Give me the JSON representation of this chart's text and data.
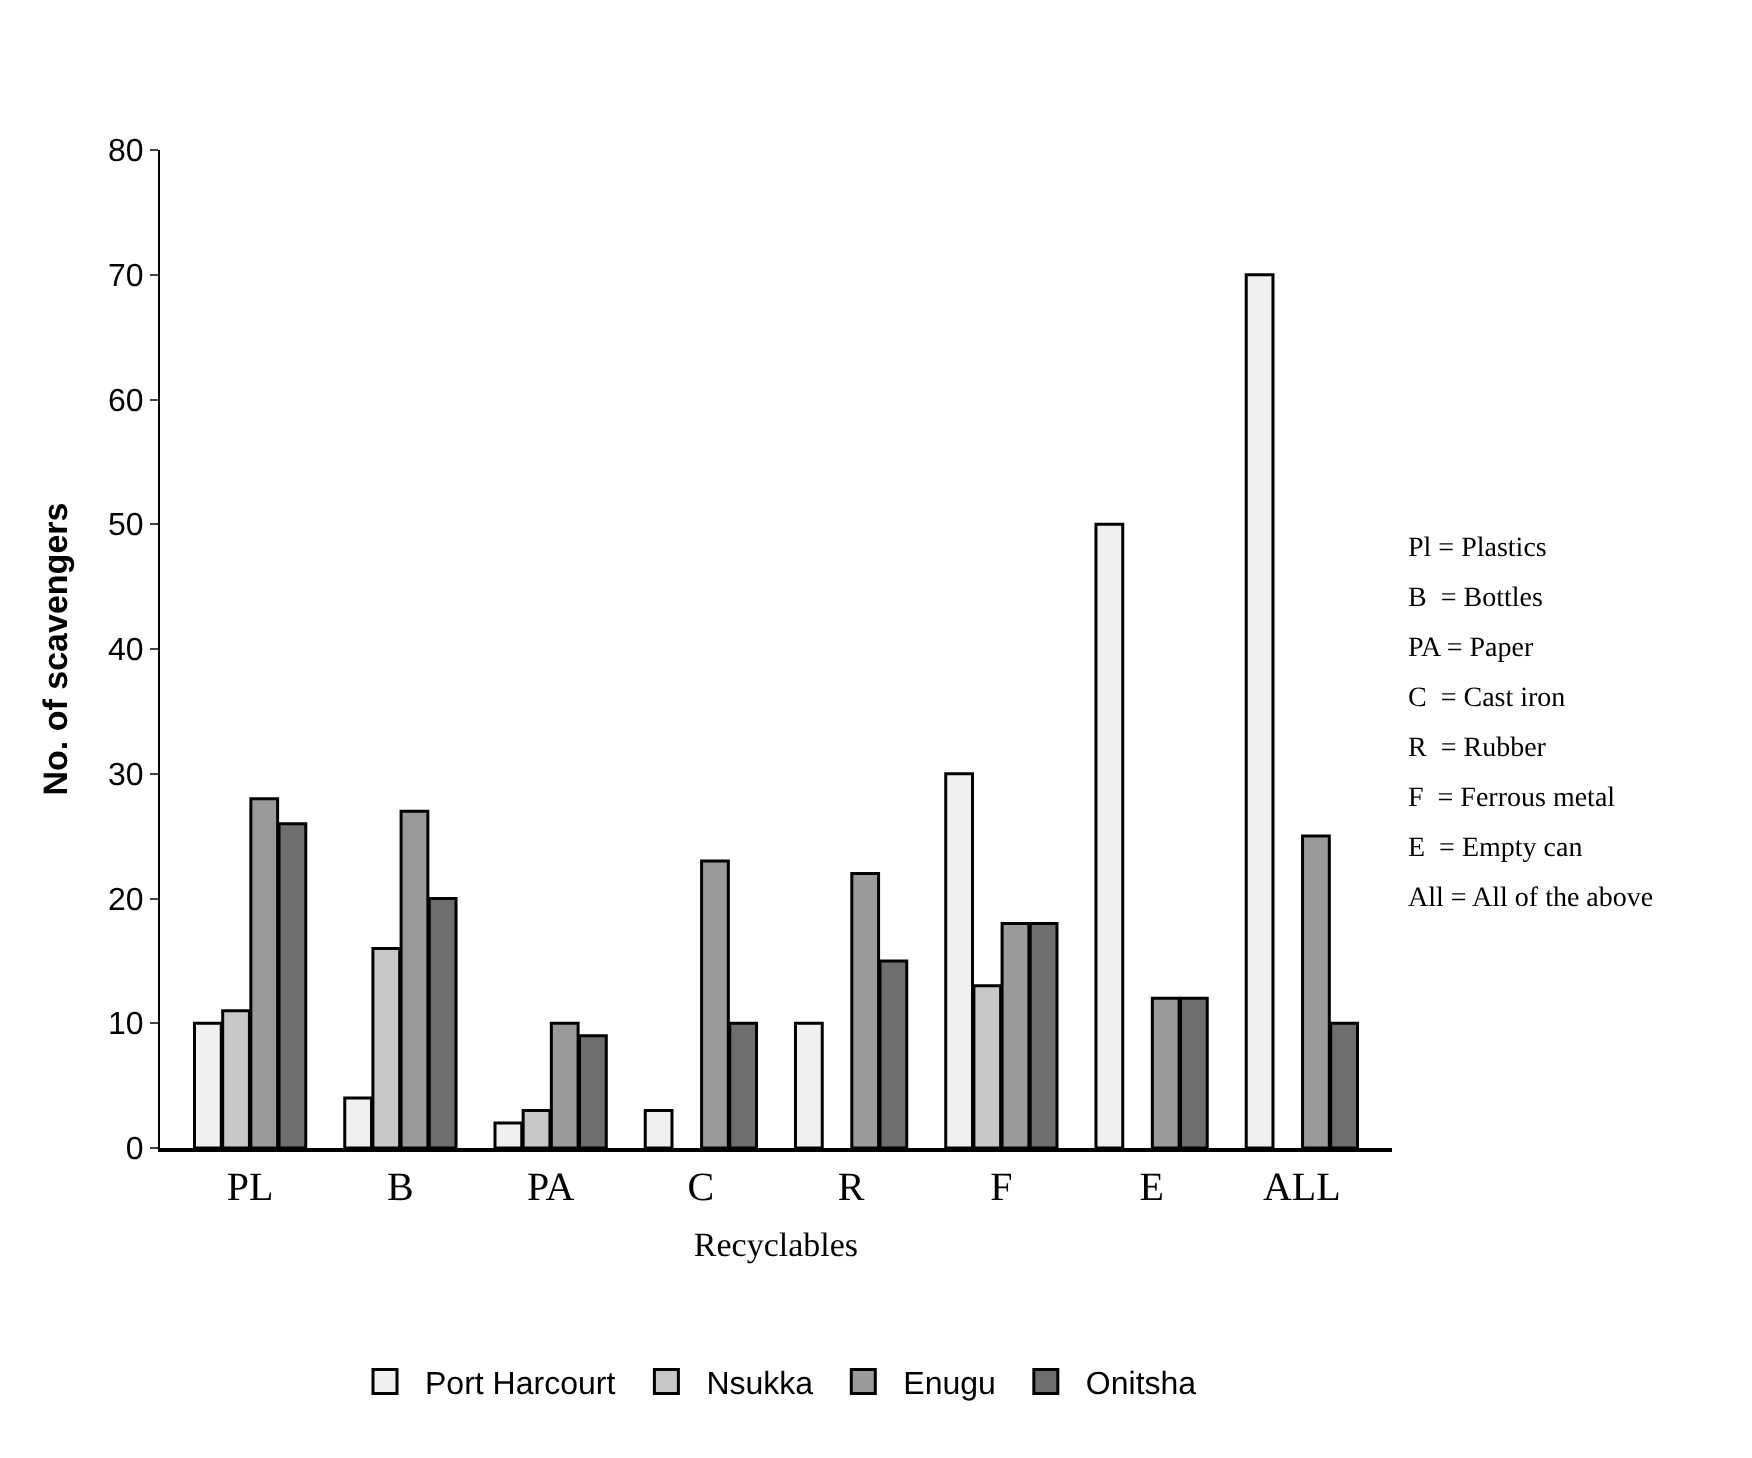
{
  "chart_data": {
    "type": "bar",
    "xlabel": "Recyclables",
    "ylabel": "No. of scavengers",
    "categories": [
      "PL",
      "B",
      "PA",
      "C",
      "R",
      "F",
      "E",
      "ALL"
    ],
    "series": [
      {
        "name": "Port Harcourt",
        "color": "#f0f0f0",
        "values": [
          10,
          4,
          2,
          3,
          10,
          30,
          50,
          70
        ]
      },
      {
        "name": "Nsukka",
        "color": "#c8c8c8",
        "values": [
          11,
          16,
          3,
          null,
          null,
          13,
          null,
          null
        ]
      },
      {
        "name": "Enugu",
        "color": "#9a9a9a",
        "values": [
          28,
          27,
          10,
          23,
          22,
          18,
          12,
          25
        ]
      },
      {
        "name": "Onitsha",
        "color": "#6e6e6e",
        "values": [
          26,
          20,
          9,
          10,
          15,
          18,
          12,
          10
        ]
      }
    ],
    "ylim": [
      0,
      80
    ],
    "yticks": [
      0,
      10,
      20,
      30,
      40,
      50,
      60,
      70,
      80
    ],
    "legend": "bottom",
    "annotations": [
      "Pl = Plastics",
      "B  = Bottles",
      "PA = Paper",
      "C  = Cast iron",
      "R  = Rubber",
      "F  = Ferrous metal",
      "E  = Empty can",
      "All = All of the above"
    ]
  }
}
